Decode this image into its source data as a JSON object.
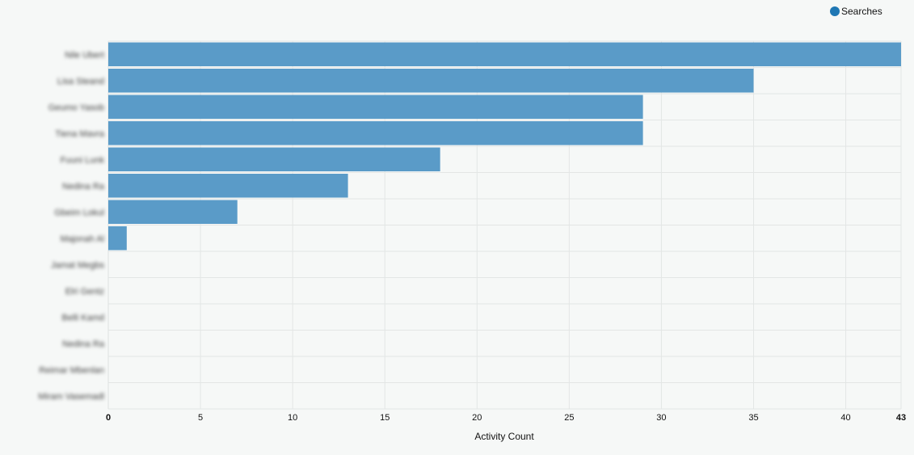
{
  "chart_data": {
    "type": "bar",
    "orientation": "horizontal",
    "categories": [
      "Nile Ubert",
      "Lisa Steand",
      "Geumo Yasob",
      "Tiena Mavra",
      "Fuuni Lunk",
      "Nedina Ra",
      "Gbeim Lokul",
      "Majonah Al",
      "Jamat Megbs",
      "Elri Gentz",
      "Belli Kamd",
      "Nedina Ra",
      "Reimar Mbenlan",
      "Miram Vasemadl"
    ],
    "series": [
      {
        "name": "Searches",
        "values": [
          43,
          35,
          29,
          29,
          18,
          13,
          7,
          1,
          0,
          0,
          0,
          0,
          0,
          0
        ]
      }
    ],
    "xlabel": "Activity Count",
    "ylabel": "",
    "xlim": [
      0,
      43
    ],
    "xticks": [
      0,
      5,
      10,
      15,
      20,
      25,
      30,
      35,
      40,
      43
    ],
    "grid": true,
    "legend_position": "top-right",
    "colors": {
      "bar": "#5a9bc8",
      "legend_swatch": "#1f77b4",
      "grid": "#e3e6e5",
      "background": "#f6f8f7"
    }
  }
}
